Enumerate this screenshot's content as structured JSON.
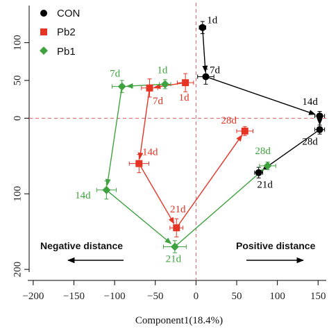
{
  "chart_data": {
    "type": "scatter",
    "title": "",
    "xlabel": "Component1(18.4%)",
    "ylabel": "",
    "xlim": [
      -205,
      160
    ],
    "ylim": [
      -210,
      150
    ],
    "x_ticks": [
      -200,
      -150,
      -100,
      -50,
      0,
      50,
      100,
      150
    ],
    "y_ticks": [
      -200,
      -100,
      0,
      50,
      100
    ],
    "x_tick_labels": [
      "−200",
      "−150",
      "−100",
      "−50",
      "0",
      "50",
      "100",
      "150"
    ],
    "y_tick_labels": [
      "200",
      "100",
      "0",
      "50",
      "100"
    ],
    "reference_lines": {
      "x": 0,
      "y": 0,
      "style": "dashed",
      "color": "#e06060"
    },
    "grid": false,
    "legend_position": "top-left",
    "series": [
      {
        "name": "CON",
        "color": "#000000",
        "marker": "circle",
        "points": [
          {
            "label": "1d",
            "x": 8,
            "y": 120,
            "xerr": 4,
            "yerr": 8
          },
          {
            "label": "7d",
            "x": 12,
            "y": 55,
            "xerr": 10,
            "yerr": 10
          },
          {
            "label": "14d",
            "x": 152,
            "y": 3,
            "xerr": 6,
            "yerr": 6
          },
          {
            "label": "28d",
            "x": 152,
            "y": -15,
            "xerr": 6,
            "yerr": 6
          },
          {
            "label": "21d",
            "x": 77,
            "y": -72,
            "xerr": 5,
            "yerr": 7
          }
        ]
      },
      {
        "name": "Pb2",
        "color": "#e53324",
        "marker": "square",
        "points": [
          {
            "label": "1d",
            "x": -13,
            "y": 47,
            "xerr": 10,
            "yerr": 12
          },
          {
            "label": "7d",
            "x": -57,
            "y": 40,
            "xerr": 10,
            "yerr": 12
          },
          {
            "label": "14d",
            "x": -70,
            "y": -60,
            "xerr": 12,
            "yerr": 12
          },
          {
            "label": "21d",
            "x": -24,
            "y": -145,
            "xerr": 8,
            "yerr": 12
          },
          {
            "label": "28d",
            "x": 60,
            "y": -17,
            "xerr": 10,
            "yerr": 6
          }
        ]
      },
      {
        "name": "Pb1",
        "color": "#3ea33e",
        "marker": "diamond",
        "points": [
          {
            "label": "1d",
            "x": -38,
            "y": 45,
            "xerr": 7,
            "yerr": 6
          },
          {
            "label": "7d",
            "x": -91,
            "y": 42,
            "xerr": 12,
            "yerr": 8
          },
          {
            "label": "14d",
            "x": -110,
            "y": -95,
            "xerr": 12,
            "yerr": 12
          },
          {
            "label": "21d",
            "x": -26,
            "y": -170,
            "xerr": 14,
            "yerr": 8
          },
          {
            "label": "28d",
            "x": 88,
            "y": -63,
            "xerr": 10,
            "yerr": 5
          }
        ]
      }
    ],
    "connections": [
      {
        "series": "CON",
        "order": [
          "1d",
          "7d",
          "14d",
          "28d",
          "21d"
        ]
      },
      {
        "series": "Pb2",
        "order": [
          "1d",
          "7d",
          "14d",
          "21d",
          "28d"
        ]
      },
      {
        "series": "Pb1",
        "order": [
          "1d",
          "7d",
          "14d",
          "21d",
          "28d"
        ]
      }
    ],
    "annotations": {
      "negative": "Negative distance",
      "positive": "Positive distance"
    }
  }
}
